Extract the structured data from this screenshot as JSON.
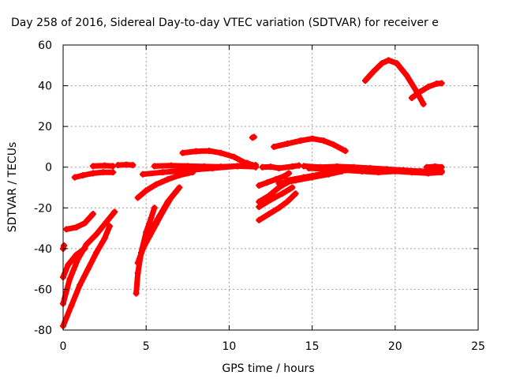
{
  "chart_data": {
    "type": "scatter",
    "title": "Day 258 of 2016, Sidereal Day-to-day VTEC variation (SDTVAR) for receiver e",
    "xlabel": "GPS time / hours",
    "ylabel": "SDTVAR / TECUs",
    "xlim": [
      0,
      25
    ],
    "ylim": [
      -80,
      60
    ],
    "xticks": [
      0,
      5,
      10,
      15,
      20,
      25
    ],
    "yticks": [
      -80,
      -60,
      -40,
      -20,
      0,
      20,
      40,
      60
    ],
    "xtick_labels": [
      "0",
      "5",
      "10",
      "15",
      "20",
      "25"
    ],
    "ytick_labels": [
      "-80",
      "-60",
      "-40",
      "-20",
      "0",
      "20",
      "40",
      "60"
    ],
    "grid": true,
    "legend": "none",
    "marker_color": "#ff0000",
    "series": [
      {
        "points": [
          [
            0.0,
            -40.0
          ],
          [
            0.05,
            -38.5
          ]
        ]
      },
      {
        "points": [
          [
            0.0,
            -54.0
          ],
          [
            0.3,
            -48.0
          ],
          [
            0.8,
            -43.0
          ],
          [
            1.3,
            -40.0
          ]
        ]
      },
      {
        "points": [
          [
            0.0,
            -67.0
          ],
          [
            0.4,
            -55.0
          ],
          [
            0.9,
            -45.0
          ],
          [
            1.4,
            -38.0
          ],
          [
            2.0,
            -33.0
          ],
          [
            2.6,
            -27.0
          ],
          [
            3.1,
            -22.0
          ]
        ]
      },
      {
        "points": [
          [
            0.0,
            -78.0
          ],
          [
            0.5,
            -68.0
          ],
          [
            1.0,
            -58.0
          ],
          [
            1.5,
            -50.0
          ],
          [
            2.0,
            -42.0
          ],
          [
            2.5,
            -35.0
          ],
          [
            2.8,
            -29.0
          ]
        ]
      },
      {
        "points": [
          [
            0.2,
            -30.5
          ],
          [
            0.8,
            -29.5
          ],
          [
            1.3,
            -27.5
          ],
          [
            1.8,
            -23.0
          ]
        ]
      },
      {
        "points": [
          [
            0.7,
            -5.0
          ],
          [
            1.2,
            -4.0
          ],
          [
            1.8,
            -3.0
          ],
          [
            2.4,
            -2.5
          ],
          [
            3.0,
            -2.5
          ]
        ]
      },
      {
        "points": [
          [
            1.8,
            0.5
          ],
          [
            2.5,
            0.8
          ],
          [
            3.0,
            0.5
          ]
        ]
      },
      {
        "points": [
          [
            3.3,
            1.0
          ],
          [
            3.8,
            1.2
          ],
          [
            4.2,
            1.0
          ]
        ]
      },
      {
        "points": [
          [
            4.4,
            -62.0
          ],
          [
            4.5,
            -52.0
          ],
          [
            4.7,
            -42.0
          ],
          [
            5.0,
            -32.0
          ],
          [
            5.3,
            -25.0
          ],
          [
            5.5,
            -20.0
          ]
        ]
      },
      {
        "points": [
          [
            4.6,
            -45.0
          ],
          [
            4.8,
            -40.0
          ],
          [
            5.2,
            -34.0
          ],
          [
            5.6,
            -28.0
          ],
          [
            6.0,
            -22.0
          ],
          [
            6.5,
            -15.0
          ],
          [
            7.0,
            -10.0
          ]
        ]
      },
      {
        "points": [
          [
            4.5,
            -47.0
          ],
          [
            4.9,
            -38.0
          ],
          [
            5.3,
            -31.0
          ],
          [
            5.8,
            -24.0
          ],
          [
            6.3,
            -17.0
          ],
          [
            6.8,
            -12.0
          ]
        ]
      },
      {
        "points": [
          [
            4.5,
            -15.0
          ],
          [
            5.0,
            -11.5
          ],
          [
            5.6,
            -8.5
          ],
          [
            6.3,
            -6.0
          ],
          [
            7.0,
            -4.0
          ],
          [
            7.8,
            -2.5
          ]
        ]
      },
      {
        "points": [
          [
            4.8,
            -3.5
          ],
          [
            6.0,
            -2.5
          ],
          [
            7.5,
            -1.5
          ],
          [
            9.0,
            -0.5
          ],
          [
            10.5,
            0.5
          ],
          [
            11.6,
            1.0
          ]
        ]
      },
      {
        "points": [
          [
            5.5,
            0.5
          ],
          [
            6.5,
            0.8
          ],
          [
            7.5,
            0.5
          ],
          [
            8.5,
            0.3
          ],
          [
            9.5,
            0.2
          ],
          [
            10.5,
            0.5
          ],
          [
            11.6,
            0.2
          ]
        ]
      },
      {
        "points": [
          [
            7.2,
            7.0
          ],
          [
            8.0,
            7.8
          ],
          [
            8.8,
            8.0
          ],
          [
            9.5,
            7.0
          ],
          [
            10.3,
            5.0
          ],
          [
            11.0,
            2.0
          ],
          [
            11.5,
            0.5
          ]
        ]
      },
      {
        "points": [
          [
            11.4,
            14.5
          ],
          [
            11.5,
            14.8
          ]
        ]
      },
      {
        "points": [
          [
            11.1,
            2.0
          ],
          [
            11.4,
            1.0
          ],
          [
            11.6,
            0.0
          ]
        ]
      },
      {
        "points": [
          [
            12.0,
            0.0
          ],
          [
            12.5,
            0.2
          ],
          [
            13.0,
            -0.5
          ],
          [
            13.8,
            0.3
          ],
          [
            14.2,
            0.8
          ]
        ]
      },
      {
        "points": [
          [
            11.8,
            -9.0
          ],
          [
            12.3,
            -7.5
          ],
          [
            12.8,
            -6.0
          ],
          [
            13.3,
            -4.5
          ],
          [
            13.6,
            -3.0
          ]
        ]
      },
      {
        "points": [
          [
            11.8,
            -17.0
          ],
          [
            12.4,
            -14.0
          ],
          [
            13.0,
            -10.0
          ],
          [
            13.5,
            -7.5
          ],
          [
            14.0,
            -6.0
          ]
        ]
      },
      {
        "points": [
          [
            11.8,
            -19.5
          ],
          [
            12.5,
            -16.0
          ],
          [
            13.2,
            -13.0
          ],
          [
            13.8,
            -10.0
          ]
        ]
      },
      {
        "points": [
          [
            11.8,
            -26.0
          ],
          [
            12.4,
            -23.0
          ],
          [
            13.0,
            -20.0
          ],
          [
            13.5,
            -17.0
          ],
          [
            14.0,
            -13.0
          ]
        ]
      },
      {
        "points": [
          [
            12.7,
            10.0
          ],
          [
            13.5,
            11.5
          ],
          [
            14.3,
            13.0
          ],
          [
            15.0,
            14.0
          ],
          [
            15.7,
            13.0
          ],
          [
            16.3,
            11.0
          ],
          [
            17.0,
            8.0
          ]
        ]
      },
      {
        "points": [
          [
            13.0,
            -8.0
          ],
          [
            14.0,
            -6.5
          ],
          [
            15.0,
            -5.0
          ],
          [
            16.0,
            -3.5
          ],
          [
            16.8,
            -2.0
          ]
        ]
      },
      {
        "points": [
          [
            13.5,
            -6.5
          ],
          [
            14.5,
            -5.0
          ],
          [
            15.5,
            -3.5
          ],
          [
            16.5,
            -2.0
          ],
          [
            17.5,
            -1.0
          ]
        ]
      },
      {
        "points": [
          [
            14.5,
            0.5
          ],
          [
            15.5,
            0.0
          ],
          [
            16.5,
            0.3
          ],
          [
            17.5,
            0.0
          ],
          [
            18.5,
            -0.5
          ],
          [
            19.5,
            -1.0
          ],
          [
            20.5,
            -1.5
          ],
          [
            21.5,
            -2.0
          ],
          [
            22.8,
            -2.0
          ]
        ]
      },
      {
        "points": [
          [
            14.8,
            -0.5
          ],
          [
            16.0,
            -1.0
          ],
          [
            17.0,
            -1.5
          ],
          [
            18.0,
            -2.0
          ],
          [
            19.0,
            -2.5
          ],
          [
            20.0,
            -2.0
          ],
          [
            21.0,
            -2.5
          ],
          [
            22.0,
            -3.0
          ],
          [
            22.8,
            -2.5
          ]
        ]
      },
      {
        "points": [
          [
            16.8,
            -0.5
          ],
          [
            17.5,
            -0.2
          ],
          [
            18.5,
            -0.8
          ],
          [
            19.5,
            -1.2
          ]
        ]
      },
      {
        "points": [
          [
            21.9,
            0.0
          ],
          [
            22.4,
            0.3
          ],
          [
            22.8,
            0.0
          ]
        ]
      },
      {
        "points": [
          [
            18.2,
            42.5
          ],
          [
            18.7,
            47.0
          ],
          [
            19.2,
            51.0
          ],
          [
            19.6,
            52.5
          ],
          [
            20.1,
            51.0
          ],
          [
            20.7,
            45.0
          ],
          [
            21.3,
            37.0
          ],
          [
            21.7,
            31.0
          ]
        ]
      },
      {
        "points": [
          [
            21.0,
            34.0
          ],
          [
            21.5,
            37.0
          ],
          [
            22.0,
            39.5
          ],
          [
            22.5,
            41.0
          ],
          [
            22.8,
            41.2
          ]
        ]
      }
    ]
  }
}
